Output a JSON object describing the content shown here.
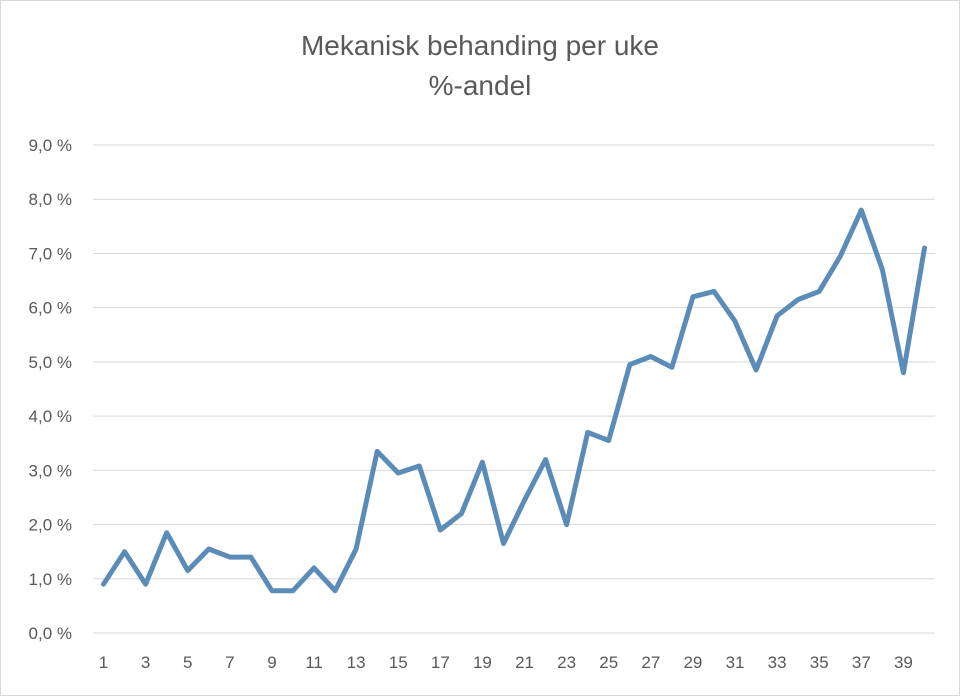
{
  "chart_data": {
    "type": "line",
    "title": "Mekanisk behanding per uke",
    "subtitle": "%-andel",
    "xlabel": "",
    "ylabel": "",
    "x": [
      1,
      2,
      3,
      4,
      5,
      6,
      7,
      8,
      9,
      10,
      11,
      12,
      13,
      14,
      15,
      16,
      17,
      18,
      19,
      20,
      21,
      22,
      23,
      24,
      25,
      26,
      27,
      28,
      29,
      30,
      31,
      32,
      33,
      34,
      35,
      36,
      37,
      38,
      39,
      40
    ],
    "x_tick_labels": [
      "1",
      "3",
      "5",
      "7",
      "9",
      "11",
      "13",
      "15",
      "17",
      "19",
      "21",
      "23",
      "25",
      "27",
      "29",
      "31",
      "33",
      "35",
      "37",
      "39"
    ],
    "y_tick_labels": [
      "0,0 %",
      "1,0 %",
      "2,0 %",
      "3,0 %",
      "4,0 %",
      "5,0 %",
      "6,0 %",
      "7,0 %",
      "8,0 %",
      "9,0 %"
    ],
    "ylim": [
      0,
      9
    ],
    "grid": true,
    "legend": "none",
    "series": [
      {
        "values": [
          0.9,
          1.5,
          0.9,
          1.85,
          1.15,
          1.55,
          1.4,
          1.4,
          0.78,
          0.78,
          1.2,
          0.78,
          1.55,
          3.35,
          2.95,
          3.08,
          1.9,
          2.2,
          3.15,
          1.65,
          2.45,
          3.2,
          2.0,
          3.7,
          3.55,
          4.95,
          5.1,
          4.9,
          6.2,
          6.3,
          5.75,
          4.85,
          5.85,
          6.15,
          6.3,
          6.95,
          7.8,
          6.7,
          4.8,
          7.1
        ],
        "color": "#5b8cb8"
      }
    ]
  }
}
